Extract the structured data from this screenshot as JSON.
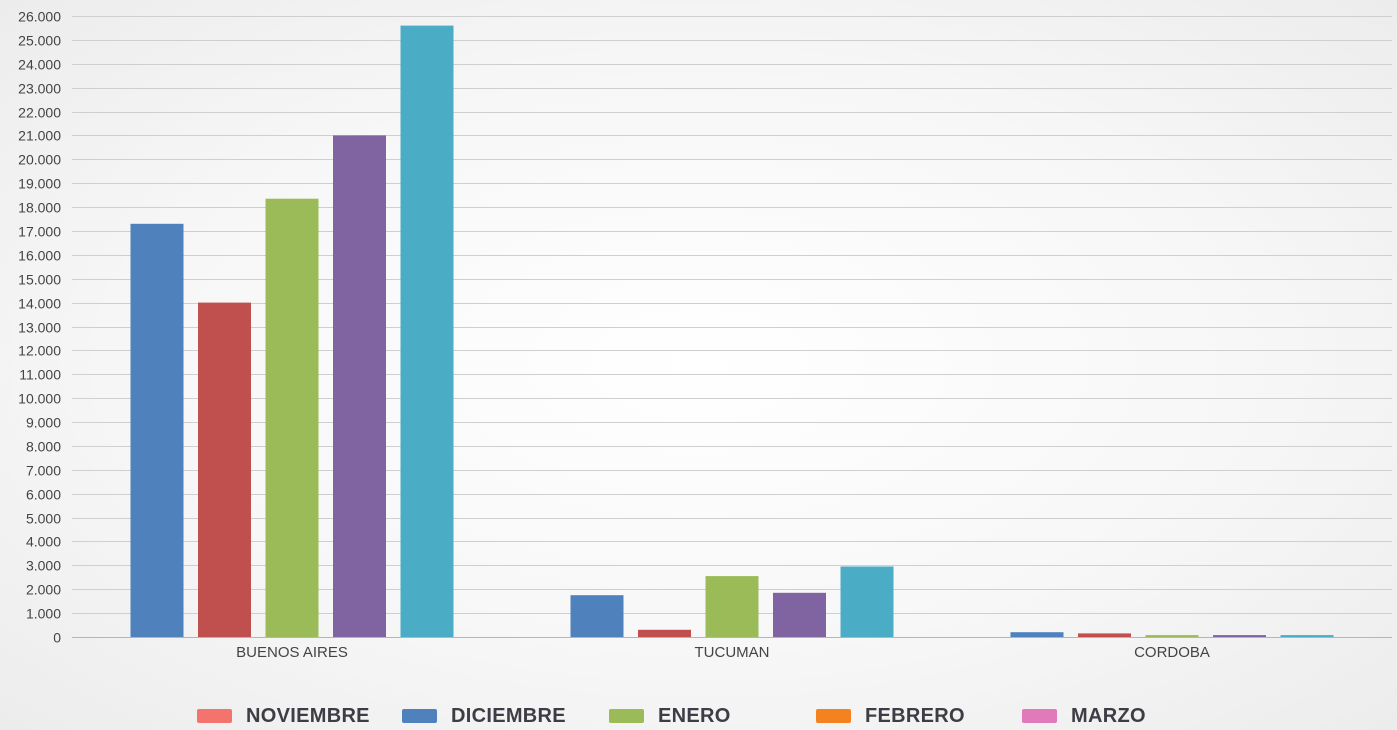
{
  "chart_data": {
    "type": "bar",
    "title": "",
    "xlabel": "",
    "ylabel": "",
    "categories": [
      "BUENOS AIRES",
      "TUCUMAN",
      "CORDOBA"
    ],
    "ylim": [
      0,
      26000
    ],
    "ytick_step": 1000,
    "y_tick_labels": [
      "0",
      "1.000",
      "2.000",
      "3.000",
      "4.000",
      "5.000",
      "6.000",
      "7.000",
      "8.000",
      "9.000",
      "10.000",
      "11.000",
      "12.000",
      "13.000",
      "14.000",
      "15.000",
      "16.000",
      "17.000",
      "18.000",
      "19.000",
      "20.000",
      "21.000",
      "22.000",
      "23.000",
      "24.000",
      "25.000",
      "26.000"
    ],
    "grid": true,
    "legend_position": "bottom",
    "series": [
      {
        "color": "#4f81bd",
        "values": [
          17300,
          1750,
          200
        ]
      },
      {
        "color": "#c0504d",
        "values": [
          14000,
          300,
          150
        ]
      },
      {
        "color": "#9bbb59",
        "values": [
          18350,
          2550,
          80
        ]
      },
      {
        "color": "#8064a2",
        "values": [
          21000,
          1850,
          80
        ]
      },
      {
        "color": "#4bacc6",
        "values": [
          25600,
          2950,
          80
        ]
      }
    ],
    "legend": [
      {
        "label": "NOVIEMBRE",
        "color": "#f2746d"
      },
      {
        "label": "DICIEMBRE",
        "color": "#4f81bd"
      },
      {
        "label": "ENERO",
        "color": "#9bbb59"
      },
      {
        "label": "FEBRERO",
        "color": "#f58220"
      },
      {
        "label": "MARZO",
        "color": "#e07ab8"
      }
    ]
  }
}
